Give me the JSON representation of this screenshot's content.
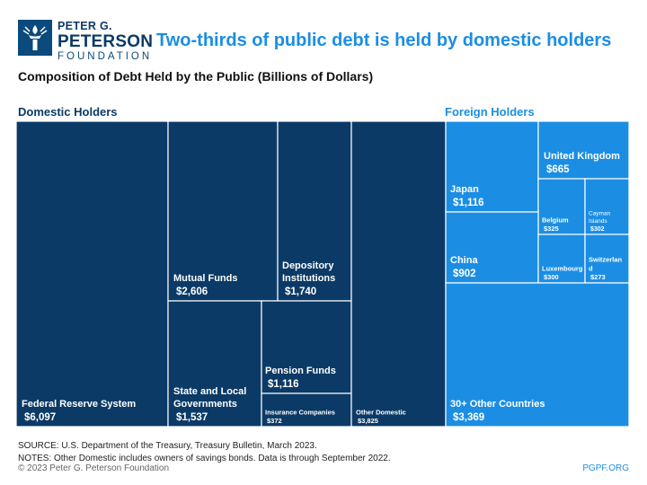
{
  "brand": {
    "line1": "PETER G.",
    "line2": "PETERSON",
    "line3": "FOUNDATION"
  },
  "headline": "Two-thirds of public debt is held by domestic holders",
  "colors": {
    "domestic": "#0b3a66",
    "foreign": "#1b8ee4",
    "divider": "#ffffff",
    "label": "#ffffff"
  },
  "chart_data": {
    "type": "treemap",
    "title": "Composition of Debt Held by the Public (Billions of Dollars)",
    "units": "Billions of Dollars",
    "groups": [
      {
        "name": "Domestic Holders",
        "items": [
          {
            "label": "Federal Reserve System",
            "value": 6097,
            "display": "$6,097"
          },
          {
            "label": "Mutual Funds",
            "value": 2606,
            "display": "$2,606"
          },
          {
            "label": "Depository Institutions",
            "value": 1740,
            "display": "$1,740"
          },
          {
            "label": "State and Local Governments",
            "value": 1537,
            "display": "$1,537"
          },
          {
            "label": "Pension Funds",
            "value": 1116,
            "display": "$1,116"
          },
          {
            "label": "Insurance Companies",
            "value": 372,
            "display": "$372"
          },
          {
            "label": "Other Domestic",
            "value": 3825,
            "display": "$3,825"
          }
        ]
      },
      {
        "name": "Foreign Holders",
        "items": [
          {
            "label": "Japan",
            "value": 1116,
            "display": "$1,116"
          },
          {
            "label": "United Kingdom",
            "value": 665,
            "display": "$665"
          },
          {
            "label": "Belgium",
            "value": 325,
            "display": "$325"
          },
          {
            "label": "Cayman Islands",
            "value": 302,
            "display": "$302"
          },
          {
            "label": "China",
            "value": 902,
            "display": "$902"
          },
          {
            "label": "Luxembourg",
            "value": 300,
            "display": "$300"
          },
          {
            "label": "Switzerland",
            "value": 273,
            "display": "$273"
          },
          {
            "label": "30+ Other Countries",
            "value": 3369,
            "display": "$3,369"
          }
        ]
      }
    ]
  },
  "source_line": "SOURCE: U.S. Department of the Treasury, Treasury Bulletin, March 2023.",
  "notes_line": "NOTES: Other Domestic includes owners of savings bonds. Data is through September 2022.",
  "copyright": "© 2023 Peter G. Peterson Foundation",
  "website": "PGPF.ORG"
}
